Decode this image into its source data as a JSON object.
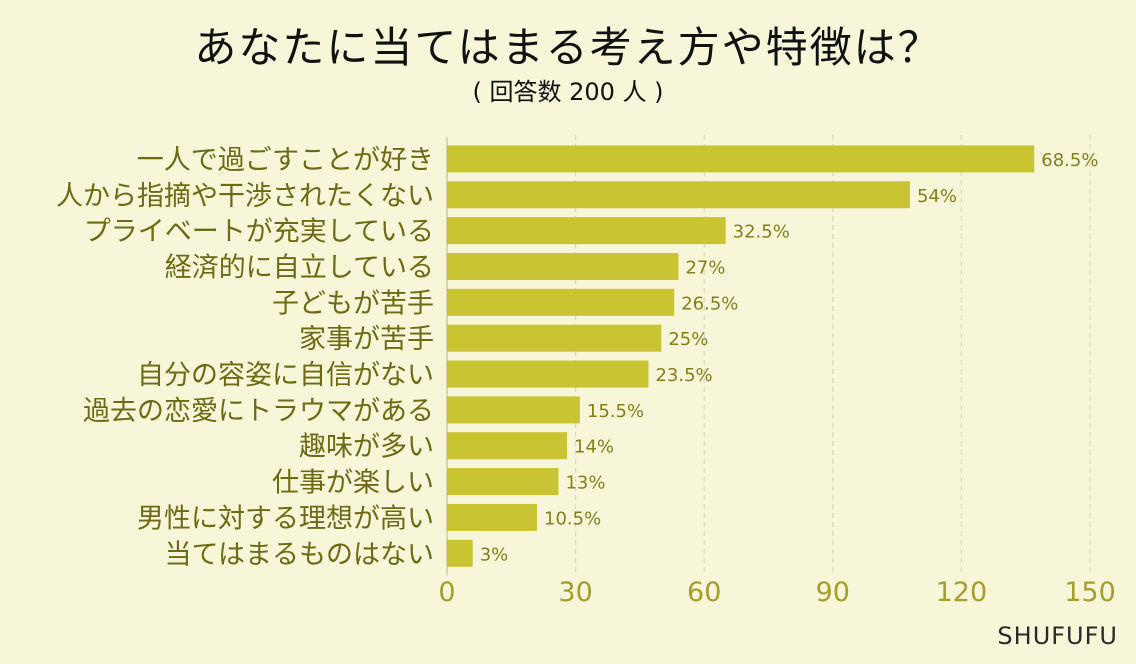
{
  "title": "あなたに当てはまる考え方や特徴は？",
  "subtitle": "( 回答数 200 人 )",
  "brand": "SHUFUFU",
  "colors": {
    "background": "#f7f6d8",
    "bar": "#c9c431",
    "category_text": "#6e6a14",
    "value_text": "#857f1a",
    "tick_text": "#a59e2a",
    "grid": "#d4d2bc"
  },
  "chart_data": {
    "type": "bar",
    "orientation": "horizontal",
    "title": "あなたに当てはまる考え方や特徴は？",
    "subtitle": "( 回答数 200 人 )",
    "categories": [
      "一人で過ごすことが好き",
      "人から指摘や干渉されたくない",
      "プライベートが充実している",
      "経済的に自立している",
      "子どもが苦手",
      "家事が苦手",
      "自分の容姿に自信がない",
      "過去の恋愛にトラウマがある",
      "趣味が多い",
      "仕事が楽しい",
      "男性に対する理想が高い",
      "当てはまるものはない"
    ],
    "values": [
      137,
      108,
      65,
      54,
      53,
      50,
      47,
      31,
      28,
      26,
      21,
      6
    ],
    "data_labels": [
      "68.5%",
      "54%",
      "32.5%",
      "27%",
      "26.5%",
      "25%",
      "23.5%",
      "15.5%",
      "14%",
      "13%",
      "10.5%",
      "3%"
    ],
    "xlim": [
      0,
      150
    ],
    "xticks": [
      "0",
      "30",
      "60",
      "90",
      "120",
      "150"
    ],
    "xlabel": "",
    "ylabel": "",
    "grid": "vertical dashed",
    "legend": "none"
  }
}
